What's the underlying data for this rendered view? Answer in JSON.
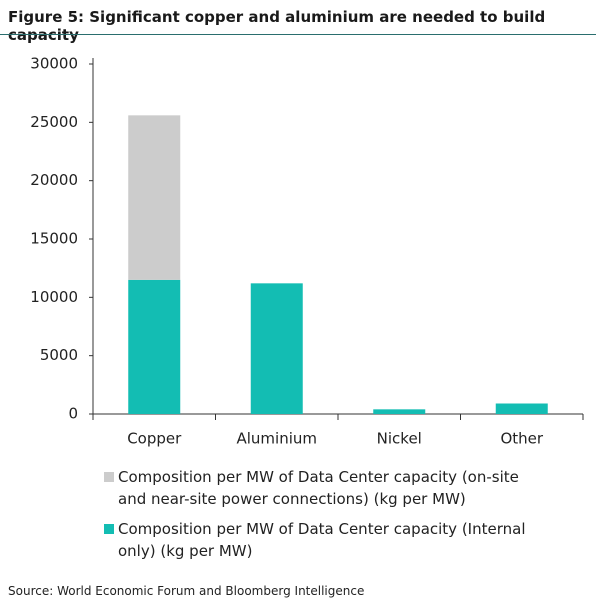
{
  "chart_data": {
    "type": "stacked_bar",
    "title": "Figure 5:  Significant copper and aluminium are needed to build capacity",
    "categories": [
      "Copper",
      "Aluminium",
      "Nickel",
      "Other"
    ],
    "series": [
      {
        "name": "Composition per MW of Data Center capacity (on-site and near-site power connections) (kg per MW)",
        "color": "#cccccc",
        "values": [
          14100,
          0,
          0,
          0
        ]
      },
      {
        "name": "Composition per MW of Data Center capacity (Internal only) (kg per MW)",
        "color": "#13bdb3",
        "values": [
          11500,
          11200,
          400,
          900
        ]
      }
    ],
    "ylim": [
      0,
      30000
    ],
    "yticks": [
      0,
      5000,
      10000,
      15000,
      20000,
      25000,
      30000
    ],
    "source": "Source: World Economic Forum and Bloomberg Intelligence"
  }
}
